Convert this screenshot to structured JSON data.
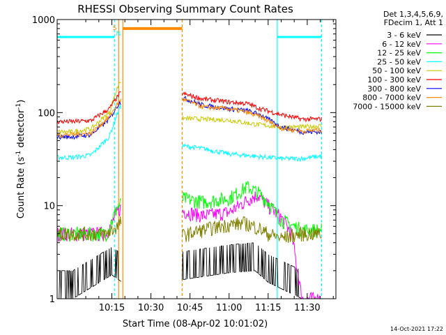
{
  "chart_data": {
    "type": "line",
    "title": "RHESSI Observing Summary Count Rates",
    "xlabel": "Start Time (08-Apr-02 10:01:02)",
    "ylabel": "Count Rate (s",
    "ylabel_sup": "-1",
    "ylabel_tail": " detector",
    "ylabel_close": ")",
    "yscale": "log",
    "xlim_min": [
      8,
      45
    ],
    "ylim": [
      1,
      1000
    ],
    "x_ticks": [
      {
        "min": 15,
        "label": "10:15"
      },
      {
        "min": 30,
        "label": "10:30"
      },
      {
        "min": 45,
        "label": "10:45"
      },
      {
        "min": 60,
        "label": "11:00"
      },
      {
        "min": 75,
        "label": "11:15"
      },
      {
        "min": 90,
        "label": "11:30"
      }
    ],
    "y_ticks": [
      {
        "v": 1,
        "label": "1"
      },
      {
        "v": 10,
        "label": "10"
      },
      {
        "v": 100,
        "label": "100"
      },
      {
        "v": 1000,
        "label": "1000"
      }
    ],
    "legend_header": [
      "Det 1,3,4,5,6,9,",
      "FDecim 1, Att 1"
    ],
    "series": [
      {
        "name": "3 - 6 keV",
        "color": "#000000",
        "points": [
          [
            0,
            1
          ],
          [
            15,
            1.8
          ],
          [
            19,
            1.5
          ],
          [
            42,
            1.6
          ],
          [
            60,
            1.9
          ],
          [
            70,
            2.0
          ],
          [
            75,
            1.5
          ],
          [
            88,
            1.0
          ],
          [
            95,
            1.0
          ]
        ]
      },
      {
        "name": "6 - 12 keV",
        "color": "#ff00ff",
        "points": [
          [
            0,
            5.0
          ],
          [
            13,
            5.0
          ],
          [
            17,
            8.5
          ],
          [
            19,
            10
          ],
          [
            42,
            8.8
          ],
          [
            50,
            7.8
          ],
          [
            60,
            8.5
          ],
          [
            68,
            12
          ],
          [
            71,
            13
          ],
          [
            75,
            10
          ],
          [
            80,
            7.5
          ],
          [
            84,
            5.0
          ],
          [
            88,
            1.0
          ],
          [
            95,
            1.0
          ]
        ]
      },
      {
        "name": "12 - 25 keV",
        "color": "#00ff00",
        "points": [
          [
            0,
            5.0
          ],
          [
            13,
            5.0
          ],
          [
            17,
            9.5
          ],
          [
            19,
            11
          ],
          [
            42,
            12
          ],
          [
            50,
            11
          ],
          [
            60,
            12
          ],
          [
            67,
            16
          ],
          [
            71,
            14
          ],
          [
            75,
            11
          ],
          [
            80,
            7.0
          ],
          [
            88,
            5.5
          ],
          [
            95,
            5.5
          ]
        ]
      },
      {
        "name": "25 - 50 keV",
        "color": "#00ffff",
        "points": [
          [
            0,
            33
          ],
          [
            7,
            35
          ],
          [
            14,
            55
          ],
          [
            18,
            115
          ],
          [
            42,
            44
          ],
          [
            50,
            41
          ],
          [
            60,
            36
          ],
          [
            70,
            34
          ],
          [
            80,
            32
          ],
          [
            88,
            32
          ],
          [
            95,
            34
          ]
        ]
      },
      {
        "name": "50 - 100 keV",
        "color": "#c8c800",
        "points": [
          [
            0,
            62
          ],
          [
            7,
            67
          ],
          [
            14,
            100
          ],
          [
            18,
            220
          ],
          [
            42,
            87
          ],
          [
            50,
            85
          ],
          [
            60,
            83
          ],
          [
            70,
            75
          ],
          [
            80,
            70
          ],
          [
            88,
            70
          ],
          [
            95,
            72
          ]
        ]
      },
      {
        "name": "100 - 300 keV",
        "color": "#ff0000",
        "points": [
          [
            0,
            80
          ],
          [
            7,
            82
          ],
          [
            14,
            110
          ],
          [
            18,
            160
          ],
          [
            42,
            160
          ],
          [
            50,
            140
          ],
          [
            60,
            130
          ],
          [
            67,
            125
          ],
          [
            72,
            110
          ],
          [
            80,
            95
          ],
          [
            88,
            85
          ],
          [
            95,
            85
          ]
        ]
      },
      {
        "name": "300 - 800 keV",
        "color": "#0000ff",
        "points": [
          [
            0,
            55
          ],
          [
            7,
            58
          ],
          [
            14,
            85
          ],
          [
            18,
            130
          ],
          [
            42,
            145
          ],
          [
            50,
            120
          ],
          [
            60,
            110
          ],
          [
            67,
            105
          ],
          [
            72,
            95
          ],
          [
            80,
            70
          ],
          [
            88,
            62
          ],
          [
            95,
            62
          ]
        ]
      },
      {
        "name": "800 - 7000 keV",
        "color": "#ff8c00",
        "points": [
          [
            0,
            58
          ],
          [
            7,
            60
          ],
          [
            14,
            90
          ],
          [
            18,
            135
          ],
          [
            42,
            140
          ],
          [
            50,
            115
          ],
          [
            60,
            110
          ],
          [
            67,
            100
          ],
          [
            72,
            90
          ],
          [
            80,
            68
          ],
          [
            88,
            63
          ],
          [
            95,
            65
          ]
        ]
      },
      {
        "name": "7000 - 15000 keV",
        "color": "#808000",
        "points": [
          [
            0,
            5.0
          ],
          [
            13,
            5.0
          ],
          [
            17,
            6.0
          ],
          [
            19,
            7.0
          ],
          [
            42,
            4.8
          ],
          [
            50,
            5.5
          ],
          [
            60,
            6.3
          ],
          [
            66,
            6.5
          ],
          [
            71,
            5.8
          ],
          [
            75,
            5.0
          ],
          [
            80,
            4.5
          ],
          [
            88,
            5.0
          ],
          [
            95,
            5.0
          ]
        ]
      }
    ],
    "annotations": [
      {
        "label": "S",
        "color": "#ff8c00"
      },
      {
        "label": "N",
        "color": "#00ffff"
      }
    ],
    "stamp": "14-Oct-2021 17:22"
  }
}
